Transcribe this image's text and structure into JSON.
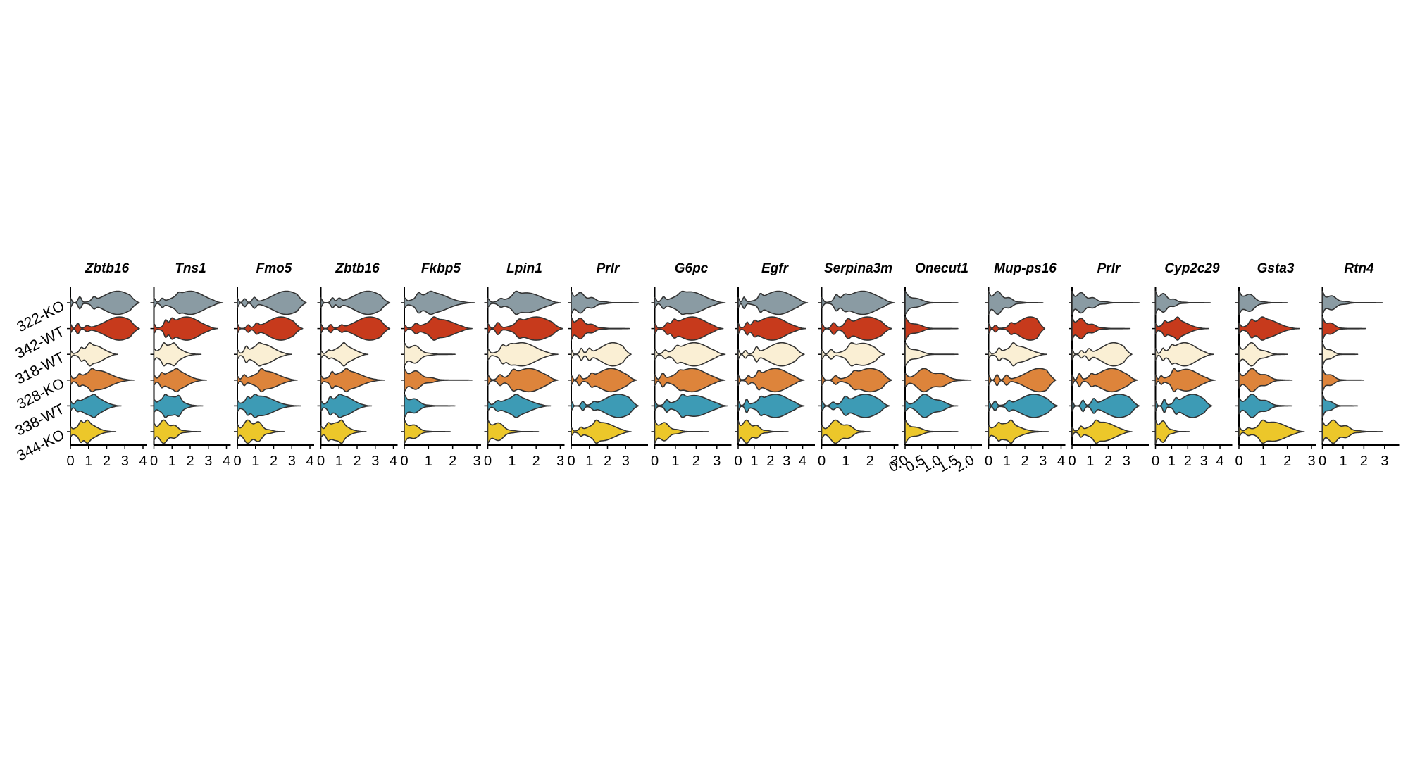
{
  "chart_data": {
    "type": "violin",
    "categories": [
      "322-KO",
      "342-WT",
      "318-WT",
      "328-KO",
      "338-WT",
      "344-KO"
    ],
    "colors": {
      "322-KO": "#8a9ba3",
      "342-WT": "#c73a1c",
      "318-WT": "#faefd4",
      "328-KO": "#dd843b",
      "338-WT": "#3d9bb5",
      "344-KO": "#ecc72a"
    },
    "outline_color": "#333333",
    "panels": [
      {
        "gene": "Zbtb16",
        "xlim": [
          0,
          4
        ],
        "ticks": [
          0,
          1,
          2,
          3,
          4
        ],
        "max": [
          3.8,
          3.8,
          2.6,
          3.5,
          2.8,
          2.5
        ],
        "peak": [
          2.6,
          2.7,
          1.3,
          1.5,
          1.2,
          0.9
        ]
      },
      {
        "gene": "Tns1",
        "xlim": [
          0,
          4
        ],
        "ticks": [
          0,
          1,
          2,
          3,
          4
        ],
        "max": [
          3.8,
          3.5,
          2.6,
          2.9,
          2.7,
          2.6
        ],
        "peak": [
          2.0,
          1.8,
          0.9,
          1.2,
          0.9,
          0.6
        ]
      },
      {
        "gene": "Fmo5",
        "xlim": [
          0,
          4
        ],
        "ticks": [
          0,
          1,
          2,
          3,
          4
        ],
        "max": [
          3.8,
          3.6,
          3.0,
          3.3,
          3.5,
          2.6
        ],
        "peak": [
          2.7,
          2.4,
          1.4,
          1.6,
          1.3,
          0.8
        ]
      },
      {
        "gene": "Zbtb16",
        "xlim": [
          0,
          4
        ],
        "ticks": [
          0,
          1,
          2,
          3,
          4
        ],
        "max": [
          3.8,
          3.8,
          2.6,
          3.5,
          2.8,
          2.5
        ],
        "peak": [
          2.6,
          2.7,
          1.3,
          1.5,
          1.2,
          0.9
        ]
      },
      {
        "gene": "Fkbp5",
        "xlim": [
          0,
          3
        ],
        "ticks": [
          0,
          1,
          2,
          3
        ],
        "max": [
          2.9,
          2.8,
          2.1,
          2.8,
          2.1,
          1.9
        ],
        "peak": [
          1.2,
          1.5,
          0.2,
          0.2,
          0.1,
          0.1
        ]
      },
      {
        "gene": "Lpin1",
        "xlim": [
          0,
          3
        ],
        "ticks": [
          0,
          1,
          2,
          3
        ],
        "max": [
          3.0,
          3.1,
          2.9,
          2.9,
          2.6,
          2.1
        ],
        "peak": [
          1.6,
          2.0,
          1.4,
          1.7,
          1.2,
          0.2
        ]
      },
      {
        "gene": "Prlr",
        "xlim": [
          0,
          4
        ],
        "ticks": [
          0,
          1,
          2,
          3
        ],
        "max": [
          3.7,
          3.2,
          3.3,
          3.6,
          3.7,
          3.3
        ],
        "peak": [
          0.3,
          0.3,
          2.3,
          2.2,
          2.6,
          1.7
        ]
      },
      {
        "gene": "G6pc",
        "xlim": [
          0,
          3.5
        ],
        "ticks": [
          0,
          1,
          2,
          3
        ],
        "max": [
          3.4,
          3.3,
          3.4,
          3.4,
          3.5,
          2.6
        ],
        "peak": [
          1.7,
          1.8,
          1.9,
          1.8,
          1.9,
          0.2
        ]
      },
      {
        "gene": "Egfr",
        "xlim": [
          0,
          4.5
        ],
        "ticks": [
          0,
          1,
          2,
          3,
          4
        ],
        "max": [
          4.3,
          4.2,
          4.1,
          4.1,
          4.1,
          3.1
        ],
        "peak": [
          2.5,
          2.1,
          2.7,
          2.3,
          2.3,
          0.5
        ]
      },
      {
        "gene": "Serpina3m",
        "xlim": [
          0,
          3
        ],
        "ticks": [
          0,
          1,
          2,
          3
        ],
        "max": [
          3.0,
          2.9,
          2.6,
          2.9,
          2.8,
          2.0
        ],
        "peak": [
          1.7,
          1.9,
          1.7,
          2.0,
          1.8,
          0.7
        ]
      },
      {
        "gene": "Onecut1",
        "xlim": [
          0,
          2.2
        ],
        "ticks": [
          0.0,
          0.5,
          1.0,
          1.5,
          2.0
        ],
        "max": [
          1.6,
          1.6,
          1.6,
          2.0,
          1.6,
          1.6
        ],
        "peak": [
          0,
          0,
          0,
          0.7,
          0.7,
          0
        ]
      },
      {
        "gene": "Mup-ps16",
        "xlim": [
          0,
          4
        ],
        "ticks": [
          0,
          1,
          2,
          3,
          4
        ],
        "max": [
          3.0,
          3.1,
          3.2,
          3.7,
          3.8,
          3.3
        ],
        "peak": [
          0.4,
          2.3,
          1.6,
          2.8,
          2.5,
          1.0
        ]
      },
      {
        "gene": "Prlr",
        "xlim": [
          0,
          4
        ],
        "ticks": [
          0,
          1,
          2,
          3
        ],
        "max": [
          3.7,
          3.2,
          3.3,
          3.6,
          3.7,
          3.3
        ],
        "peak": [
          0.3,
          0.3,
          2.3,
          2.2,
          2.6,
          1.7
        ]
      },
      {
        "gene": "Cyp2c29",
        "xlim": [
          0,
          4.5
        ],
        "ticks": [
          0,
          1,
          2,
          3,
          4
        ],
        "max": [
          3.4,
          3.3,
          3.6,
          3.7,
          3.5,
          2.1
        ],
        "peak": [
          0.2,
          1.3,
          1.8,
          1.9,
          2.3,
          0.3
        ]
      },
      {
        "gene": "Gsta3",
        "xlim": [
          0,
          3
        ],
        "ticks": [
          0,
          1,
          2,
          3
        ],
        "max": [
          2.0,
          2.5,
          2.0,
          2.2,
          2.2,
          2.7
        ],
        "peak": [
          0.2,
          1.1,
          0.5,
          0.6,
          0.6,
          1.4
        ]
      },
      {
        "gene": "Rtn4",
        "xlim": [
          0,
          3.5
        ],
        "ticks": [
          0,
          1,
          2,
          3
        ],
        "max": [
          2.9,
          2.1,
          1.7,
          2.0,
          1.7,
          2.9
        ],
        "peak": [
          0,
          0,
          0,
          0,
          0,
          0.5
        ]
      }
    ]
  }
}
